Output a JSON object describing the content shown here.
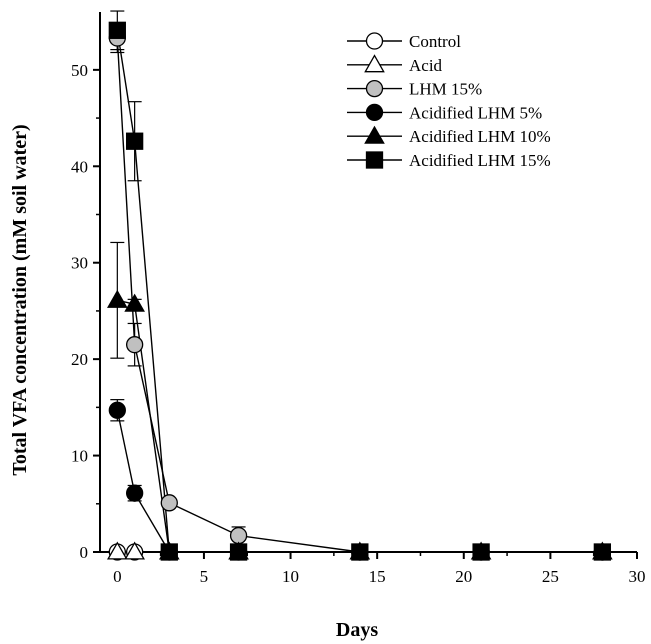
{
  "chart_data": {
    "type": "line",
    "title": "",
    "xlabel": "Days",
    "ylabel": "Total VFA concentration (mM soil water)",
    "xlim": [
      -1,
      30
    ],
    "ylim": [
      0,
      56
    ],
    "xticks": [
      "0",
      "5",
      "10",
      "15",
      "20",
      "25",
      "30"
    ],
    "yticks": [
      "0",
      "10",
      "20",
      "30",
      "40",
      "50"
    ],
    "grid": false,
    "legend_position": "top-right",
    "series": [
      {
        "name": "Control",
        "marker": "circle",
        "fill": "#ffffff",
        "stroke": "#000000",
        "x": [
          0,
          1
        ],
        "y": [
          0,
          0
        ],
        "err": [
          0,
          0
        ]
      },
      {
        "name": "Acid",
        "marker": "triangle",
        "fill": "#ffffff",
        "stroke": "#000000",
        "x": [
          0,
          1
        ],
        "y": [
          0,
          0
        ],
        "err": [
          0,
          0
        ]
      },
      {
        "name": "LHM 15%",
        "marker": "circle",
        "fill": "#c0c0c0",
        "stroke": "#000000",
        "x": [
          0,
          1,
          3,
          7,
          14,
          21,
          28
        ],
        "y": [
          53.3,
          21.5,
          5.1,
          1.7,
          0,
          0,
          0
        ],
        "err": [
          1.5,
          2.2,
          0,
          0.9,
          0,
          0,
          0
        ]
      },
      {
        "name": "Acidified LHM 5%",
        "marker": "circle",
        "fill": "#000000",
        "stroke": "#000000",
        "x": [
          0,
          1,
          3,
          7,
          14,
          21,
          28
        ],
        "y": [
          14.7,
          6.1,
          0,
          0,
          0,
          0,
          0
        ],
        "err": [
          1.1,
          0.8,
          0,
          0,
          0,
          0,
          0
        ]
      },
      {
        "name": "Acidified LHM 10%",
        "marker": "triangle",
        "fill": "#000000",
        "stroke": "#000000",
        "x": [
          0,
          1,
          3,
          7,
          14,
          21,
          28
        ],
        "y": [
          26.1,
          25.7,
          0,
          0,
          0,
          0,
          0
        ],
        "err": [
          6.0,
          0.5,
          0,
          0,
          0,
          0,
          0
        ]
      },
      {
        "name": "Acidified LHM 15%",
        "marker": "square",
        "fill": "#000000",
        "stroke": "#000000",
        "x": [
          0,
          1,
          3,
          7,
          14,
          21,
          28
        ],
        "y": [
          54.1,
          42.6,
          0,
          0,
          0,
          0,
          0
        ],
        "err": [
          2.0,
          4.1,
          0,
          0,
          0,
          0,
          0
        ]
      }
    ]
  }
}
